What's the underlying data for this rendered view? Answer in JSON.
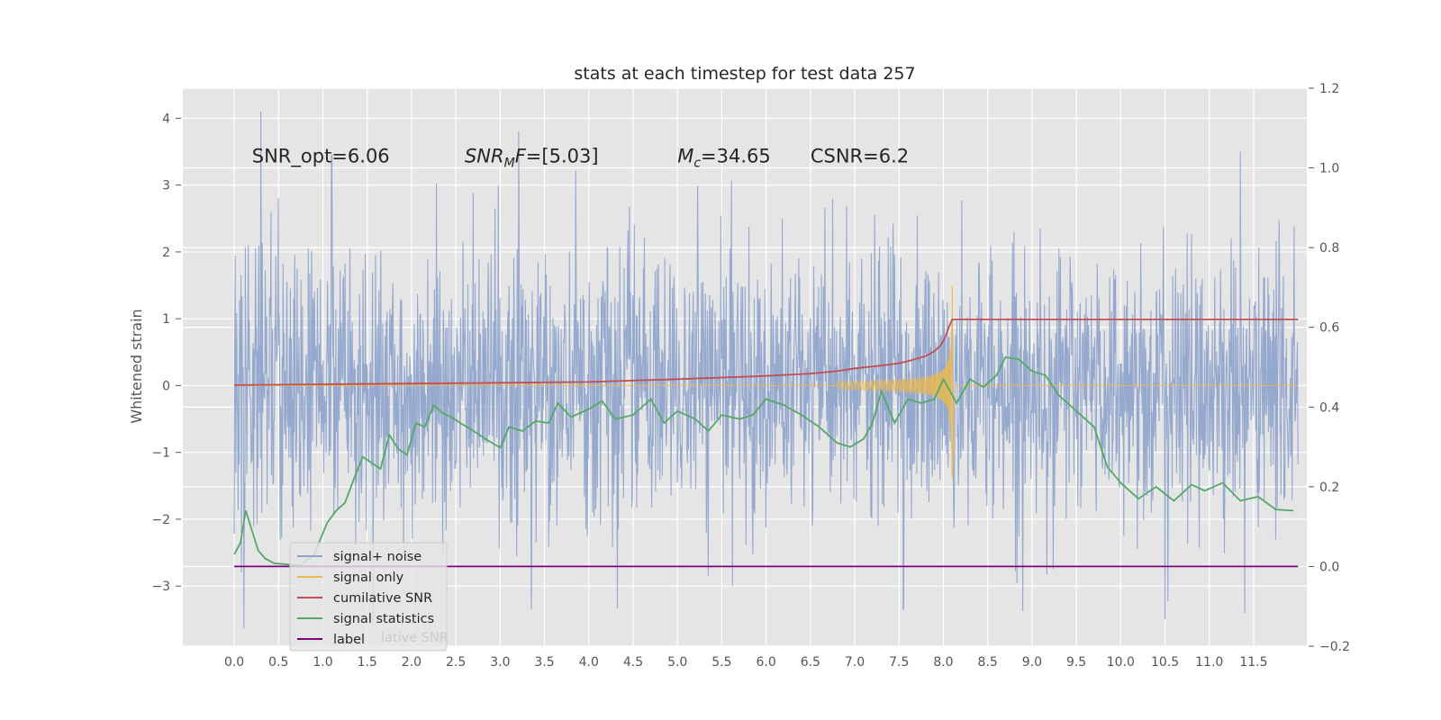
{
  "chart_data": {
    "type": "line",
    "title": "stats at each timestep for test data 257",
    "ylabel": "Whitened strain",
    "xlim": [
      -0.58,
      12.1
    ],
    "ylim": [
      -3.9,
      4.45
    ],
    "y2lim": [
      -0.2,
      1.2
    ],
    "grid": true,
    "legend_position": "lower-left",
    "x_ticks": [
      "0.0",
      "0.5",
      "1.0",
      "1.5",
      "2.0",
      "2.5",
      "3.0",
      "3.5",
      "4.0",
      "4.5",
      "5.0",
      "5.5",
      "6.0",
      "6.5",
      "7.0",
      "7.5",
      "8.0",
      "8.5",
      "9.0",
      "9.5",
      "10.0",
      "10.5",
      "11.0",
      "11.5"
    ],
    "y_ticks": [
      "4",
      "3",
      "2",
      "1",
      "0",
      "−1",
      "−2",
      "−3"
    ],
    "y2_ticks": [
      "1.2",
      "1.0",
      "0.8",
      "0.6",
      "0.4",
      "0.2",
      "0.0",
      "−0.2"
    ],
    "annotations": [
      {
        "text": "SNR_opt=6.06",
        "x": 0.2,
        "y": 3.3
      },
      {
        "prefix": "SNR",
        "sub": "M",
        "suffix": "F=[5.03]",
        "x": 2.6,
        "y": 3.3
      },
      {
        "prefix": "M",
        "sub": "c",
        "suffix": "=34.65",
        "x": 5.0,
        "y": 3.3
      },
      {
        "text": "CSNR=6.2",
        "x": 6.5,
        "y": 3.3
      }
    ],
    "series": [
      {
        "name": "signal+ noise",
        "axis": "left",
        "color": "#90a4cc",
        "description": "whitened strain noise, x from 0.0 to 12.0",
        "x_range": [
          0.0,
          12.0
        ],
        "peaks": [
          [
            0.3,
            4.1
          ],
          [
            11.35,
            3.5
          ],
          [
            1.1,
            3.45
          ],
          [
            10.5,
            -3.5
          ],
          [
            11.4,
            -3.4
          ],
          [
            3.35,
            -3.35
          ],
          [
            7.55,
            -3.35
          ]
        ]
      },
      {
        "name": "signal only",
        "axis": "left",
        "color": "#ebb94f",
        "chirp_start": 6.8,
        "chirp_peak": [
          8.1,
          1.5
        ],
        "chirp_trough": [
          8.1,
          -1.4
        ],
        "after_merger": 0.0
      },
      {
        "name": "cumilative SNR",
        "axis": "right",
        "color": "#c44e52",
        "x": [
          0.0,
          1.0,
          2.0,
          3.0,
          4.0,
          5.0,
          6.0,
          6.5,
          6.8,
          7.0,
          7.3,
          7.5,
          7.65,
          7.8,
          7.9,
          7.97,
          8.02,
          8.06,
          8.1,
          12.0
        ],
        "y": [
          0.455,
          0.457,
          0.459,
          0.461,
          0.463,
          0.47,
          0.478,
          0.484,
          0.49,
          0.497,
          0.504,
          0.51,
          0.518,
          0.528,
          0.54,
          0.555,
          0.575,
          0.6,
          0.62,
          0.62
        ]
      },
      {
        "name": "signal statistics",
        "axis": "right",
        "color": "#55a868",
        "x": [
          0.0,
          0.07,
          0.13,
          0.2,
          0.27,
          0.35,
          0.45,
          0.6,
          0.75,
          0.9,
          1.05,
          1.15,
          1.25,
          1.35,
          1.45,
          1.55,
          1.65,
          1.75,
          1.85,
          1.95,
          2.05,
          2.15,
          2.25,
          2.35,
          2.45,
          2.55,
          2.7,
          2.85,
          3.0,
          3.1,
          3.25,
          3.4,
          3.55,
          3.65,
          3.8,
          4.0,
          4.15,
          4.3,
          4.5,
          4.7,
          4.85,
          5.0,
          5.2,
          5.35,
          5.5,
          5.7,
          5.85,
          6.0,
          6.2,
          6.4,
          6.6,
          6.8,
          6.95,
          7.1,
          7.2,
          7.3,
          7.45,
          7.6,
          7.75,
          7.9,
          8.0,
          8.15,
          8.3,
          8.45,
          8.6,
          8.7,
          8.85,
          9.0,
          9.15,
          9.3,
          9.5,
          9.7,
          9.85,
          10.0,
          10.2,
          10.4,
          10.6,
          10.8,
          10.95,
          11.15,
          11.35,
          11.55,
          11.75,
          11.95
        ],
        "y": [
          0.03,
          0.06,
          0.14,
          0.09,
          0.04,
          0.02,
          0.008,
          0.005,
          0.003,
          0.03,
          0.11,
          0.14,
          0.16,
          0.22,
          0.275,
          0.26,
          0.245,
          0.33,
          0.295,
          0.28,
          0.36,
          0.35,
          0.405,
          0.385,
          0.375,
          0.36,
          0.34,
          0.318,
          0.298,
          0.35,
          0.34,
          0.365,
          0.36,
          0.41,
          0.375,
          0.395,
          0.415,
          0.37,
          0.38,
          0.42,
          0.36,
          0.39,
          0.37,
          0.34,
          0.38,
          0.37,
          0.38,
          0.42,
          0.405,
          0.38,
          0.35,
          0.31,
          0.3,
          0.32,
          0.36,
          0.44,
          0.36,
          0.42,
          0.41,
          0.42,
          0.47,
          0.41,
          0.47,
          0.45,
          0.48,
          0.525,
          0.52,
          0.49,
          0.48,
          0.43,
          0.39,
          0.35,
          0.25,
          0.21,
          0.17,
          0.2,
          0.165,
          0.205,
          0.19,
          0.21,
          0.165,
          0.175,
          0.143,
          0.14
        ]
      },
      {
        "name": "label",
        "axis": "right",
        "color": "#800080",
        "x": [
          0.0,
          12.0
        ],
        "y": [
          0.0,
          0.0
        ]
      }
    ],
    "legend": {
      "entries": [
        "signal+ noise",
        "signal only",
        "cumilative SNR",
        "signal statistics",
        "label"
      ],
      "ghost_text": "lative SNR"
    }
  }
}
